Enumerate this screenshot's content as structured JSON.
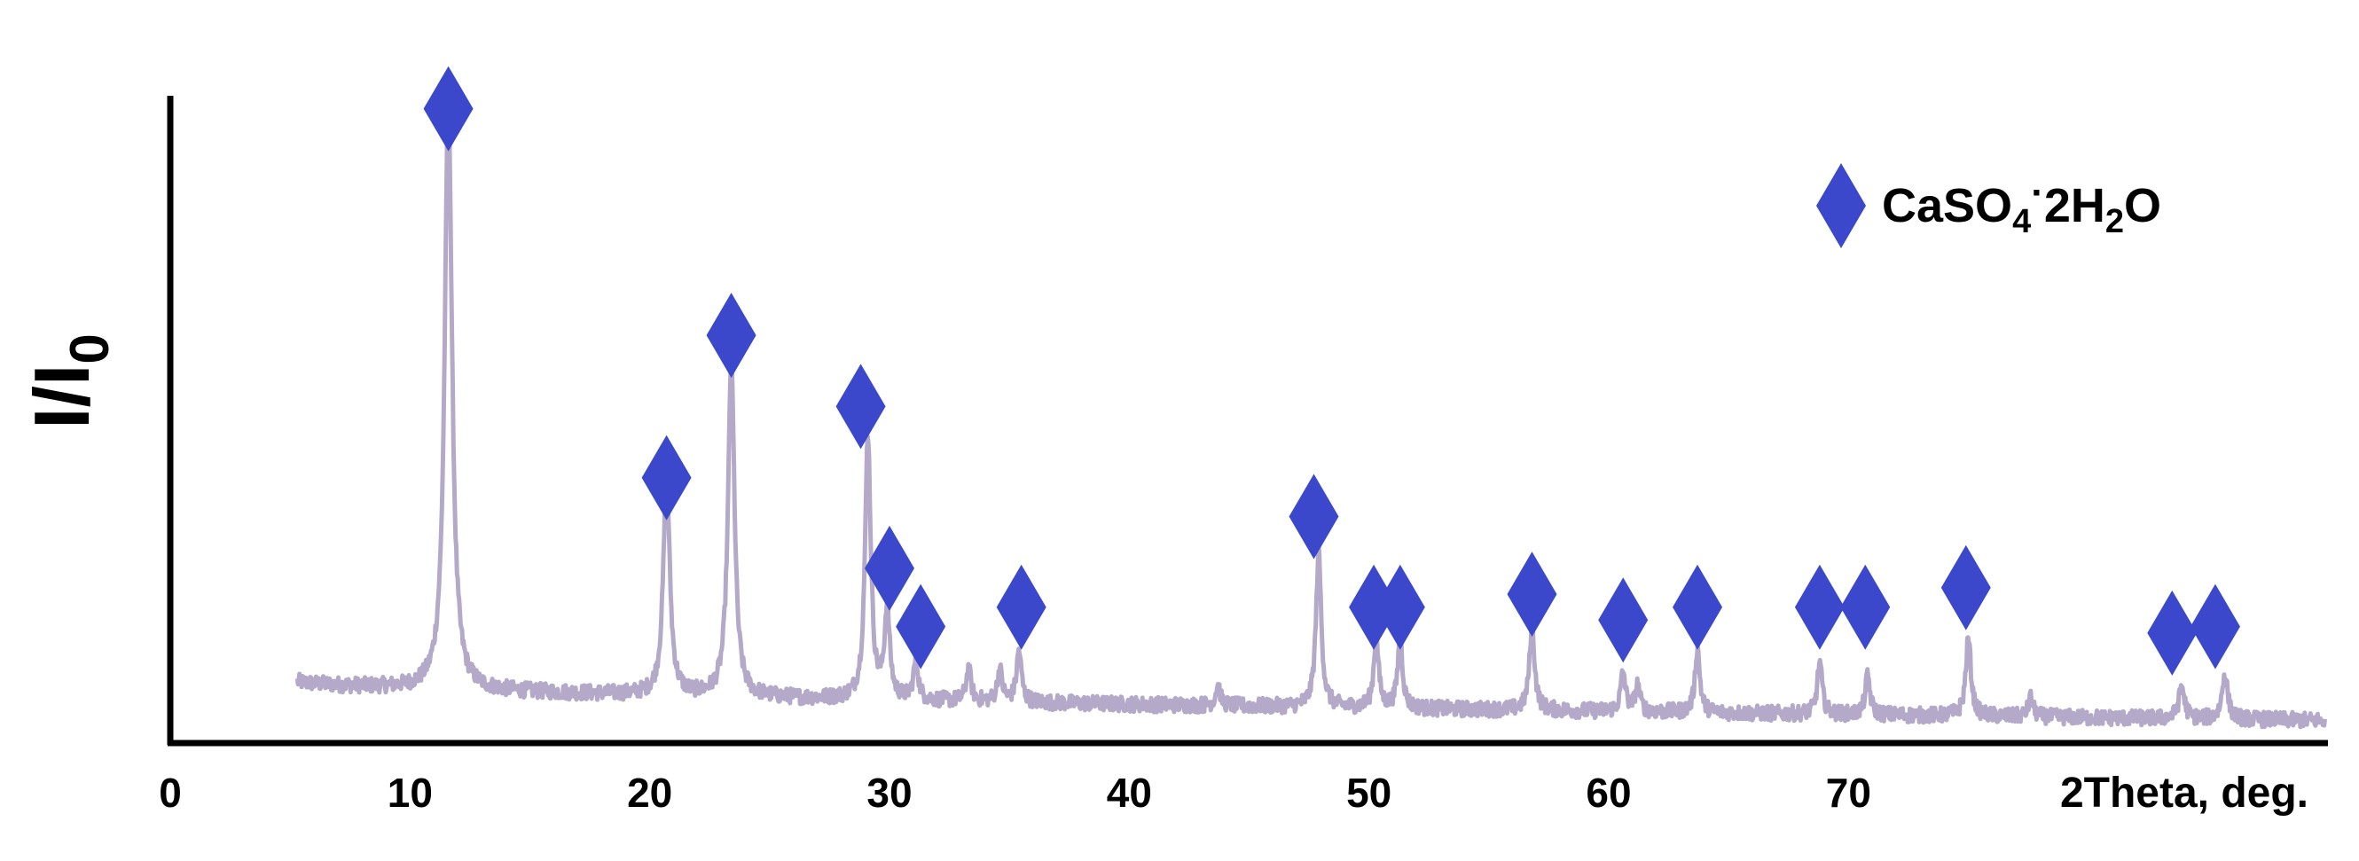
{
  "chart_data": {
    "type": "line",
    "xlabel": "2Theta, deg.",
    "ylabel": {
      "main": "I/I",
      "sub": "0"
    },
    "xlim": [
      0,
      90
    ],
    "x_ticks": [
      0,
      10,
      20,
      30,
      40,
      50,
      60,
      70
    ],
    "x_tick_labels": [
      "0",
      "10",
      "20",
      "30",
      "40",
      "50",
      "60",
      "70"
    ],
    "y_ticks_shown": false,
    "grid": false,
    "legend": {
      "position": "top-right",
      "marker": "diamond",
      "label_parts": [
        {
          "text": "CaSO",
          "shift": "none"
        },
        {
          "text": "4",
          "shift": "sub"
        },
        {
          "text": "·",
          "shift": "sup"
        },
        {
          "text": "2H",
          "shift": "none"
        },
        {
          "text": "2",
          "shift": "sub"
        },
        {
          "text": "O",
          "shift": "none"
        }
      ]
    },
    "colors": {
      "pattern": "#b4a9c8",
      "marker": "#3b48cc",
      "axis": "#000000"
    },
    "pattern": {
      "x_range": [
        5.3,
        89.9
      ],
      "baseline_start": 0.095,
      "baseline_end": 0.035,
      "noise_amplitude": 0.012,
      "peaks": [
        {
          "x": 11.6,
          "height": 0.92,
          "width": 0.18
        },
        {
          "x": 20.7,
          "height": 0.34,
          "width": 0.16
        },
        {
          "x": 23.4,
          "height": 0.52,
          "width": 0.16
        },
        {
          "x": 29.1,
          "height": 0.41,
          "width": 0.14
        },
        {
          "x": 29.9,
          "height": 0.14,
          "width": 0.13
        },
        {
          "x": 31.1,
          "height": 0.06,
          "width": 0.12
        },
        {
          "x": 33.3,
          "height": 0.05,
          "width": 0.12
        },
        {
          "x": 34.6,
          "height": 0.05,
          "width": 0.12
        },
        {
          "x": 35.4,
          "height": 0.08,
          "width": 0.12
        },
        {
          "x": 43.7,
          "height": 0.03,
          "width": 0.12
        },
        {
          "x": 47.9,
          "height": 0.24,
          "width": 0.13
        },
        {
          "x": 50.3,
          "height": 0.11,
          "width": 0.12
        },
        {
          "x": 51.3,
          "height": 0.11,
          "width": 0.12
        },
        {
          "x": 56.8,
          "height": 0.13,
          "width": 0.13
        },
        {
          "x": 60.6,
          "height": 0.06,
          "width": 0.12
        },
        {
          "x": 61.2,
          "height": 0.04,
          "width": 0.12
        },
        {
          "x": 63.7,
          "height": 0.1,
          "width": 0.12
        },
        {
          "x": 68.8,
          "height": 0.08,
          "width": 0.12
        },
        {
          "x": 70.8,
          "height": 0.06,
          "width": 0.12
        },
        {
          "x": 75.0,
          "height": 0.12,
          "width": 0.13
        },
        {
          "x": 77.6,
          "height": 0.03,
          "width": 0.12
        },
        {
          "x": 83.9,
          "height": 0.05,
          "width": 0.14
        },
        {
          "x": 85.7,
          "height": 0.07,
          "width": 0.14
        }
      ]
    },
    "markers": [
      {
        "x": 11.6,
        "y": 0.98
      },
      {
        "x": 20.7,
        "y": 0.41
      },
      {
        "x": 23.4,
        "y": 0.63
      },
      {
        "x": 28.8,
        "y": 0.52
      },
      {
        "x": 30.0,
        "y": 0.27
      },
      {
        "x": 31.3,
        "y": 0.18
      },
      {
        "x": 35.5,
        "y": 0.21
      },
      {
        "x": 47.7,
        "y": 0.35
      },
      {
        "x": 50.2,
        "y": 0.21
      },
      {
        "x": 51.3,
        "y": 0.21
      },
      {
        "x": 56.8,
        "y": 0.23
      },
      {
        "x": 60.6,
        "y": 0.19
      },
      {
        "x": 63.7,
        "y": 0.21
      },
      {
        "x": 68.8,
        "y": 0.21
      },
      {
        "x": 70.7,
        "y": 0.21
      },
      {
        "x": 74.9,
        "y": 0.24
      },
      {
        "x": 83.5,
        "y": 0.17
      },
      {
        "x": 85.3,
        "y": 0.18
      }
    ]
  }
}
